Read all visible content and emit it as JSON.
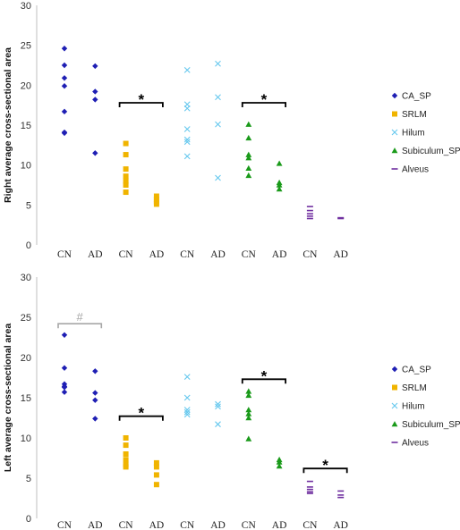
{
  "series_styles": [
    {
      "name": "CA_SP",
      "color": "#1f1fb4",
      "marker": "diamond"
    },
    {
      "name": "SRLM",
      "color": "#f0b400",
      "marker": "square"
    },
    {
      "name": "Hilum",
      "color": "#66c8ee",
      "marker": "x"
    },
    {
      "name": "Subiculum_SP",
      "color": "#1a9a1a",
      "marker": "triangle"
    },
    {
      "name": "Alveus",
      "color": "#7030a0",
      "marker": "dash"
    }
  ],
  "chart_data": [
    {
      "type": "scatter",
      "ylabel": "Right average cross-sectional area",
      "ylim": [
        0,
        30
      ],
      "yticks": [
        "0",
        "5",
        "10",
        "15",
        "20",
        "25",
        "30"
      ],
      "categories": [
        "CN",
        "AD",
        "CN",
        "AD",
        "CN",
        "AD",
        "CN",
        "AD",
        "CN",
        "AD"
      ],
      "legend": [
        "CA_SP",
        "SRLM",
        "Hilum",
        "Subiculum_SP",
        "Alveus"
      ],
      "legend_position": "right",
      "series": [
        {
          "name": "CA_SP",
          "points": [
            [
              1,
              24.6
            ],
            [
              1,
              22.5
            ],
            [
              1,
              20.9
            ],
            [
              1,
              19.9
            ],
            [
              1,
              16.7
            ],
            [
              1,
              14.1
            ],
            [
              1,
              14.0
            ],
            [
              2,
              22.4
            ],
            [
              2,
              19.2
            ],
            [
              2,
              18.2
            ],
            [
              2,
              11.5
            ]
          ]
        },
        {
          "name": "SRLM",
          "points": [
            [
              3,
              12.7
            ],
            [
              3,
              11.3
            ],
            [
              3,
              9.5
            ],
            [
              3,
              8.6
            ],
            [
              3,
              8.0
            ],
            [
              3,
              7.5
            ],
            [
              3,
              6.6
            ],
            [
              4,
              6.1
            ],
            [
              4,
              5.7
            ],
            [
              4,
              5.4
            ],
            [
              4,
              5.1
            ]
          ]
        },
        {
          "name": "Hilum",
          "points": [
            [
              5,
              21.9
            ],
            [
              5,
              17.6
            ],
            [
              5,
              17.1
            ],
            [
              5,
              14.5
            ],
            [
              5,
              13.2
            ],
            [
              5,
              12.9
            ],
            [
              5,
              11.1
            ],
            [
              6,
              22.7
            ],
            [
              6,
              18.5
            ],
            [
              6,
              15.1
            ],
            [
              6,
              8.4
            ]
          ]
        },
        {
          "name": "Subiculum_SP",
          "points": [
            [
              7,
              15.1
            ],
            [
              7,
              13.4
            ],
            [
              7,
              11.3
            ],
            [
              7,
              10.9
            ],
            [
              7,
              9.6
            ],
            [
              7,
              8.7
            ],
            [
              8,
              10.2
            ],
            [
              8,
              7.8
            ],
            [
              8,
              7.5
            ],
            [
              8,
              7.0
            ]
          ]
        },
        {
          "name": "Alveus",
          "points": [
            [
              9,
              4.8
            ],
            [
              9,
              4.3
            ],
            [
              9,
              3.9
            ],
            [
              9,
              3.6
            ],
            [
              9,
              3.3
            ],
            [
              10,
              3.4
            ],
            [
              10,
              3.3
            ]
          ]
        }
      ],
      "annotations": [
        {
          "text": "*",
          "x1": 3,
          "x2": 4,
          "y": 17.8,
          "color": "#000000"
        },
        {
          "text": "*",
          "x1": 7,
          "x2": 8,
          "y": 17.8,
          "color": "#000000"
        }
      ]
    },
    {
      "type": "scatter",
      "ylabel": "Left average cross-sectional area",
      "ylim": [
        0,
        30
      ],
      "yticks": [
        "0",
        "5",
        "10",
        "15",
        "20",
        "25",
        "30"
      ],
      "categories": [
        "CN",
        "AD",
        "CN",
        "AD",
        "CN",
        "AD",
        "CN",
        "AD",
        "CN",
        "AD"
      ],
      "legend": [
        "CA_SP",
        "SRLM",
        "Hilum",
        "Subiculum_SP",
        "Alveus"
      ],
      "legend_position": "right",
      "series": [
        {
          "name": "CA_SP",
          "points": [
            [
              1,
              22.8
            ],
            [
              1,
              18.7
            ],
            [
              1,
              16.7
            ],
            [
              1,
              16.4
            ],
            [
              1,
              16.3
            ],
            [
              1,
              15.7
            ],
            [
              2,
              18.3
            ],
            [
              2,
              15.6
            ],
            [
              2,
              14.7
            ],
            [
              2,
              12.4
            ]
          ]
        },
        {
          "name": "SRLM",
          "points": [
            [
              3,
              10.0
            ],
            [
              3,
              9.1
            ],
            [
              3,
              8.0
            ],
            [
              3,
              7.3
            ],
            [
              3,
              6.7
            ],
            [
              3,
              6.4
            ],
            [
              4,
              6.9
            ],
            [
              4,
              6.4
            ],
            [
              4,
              5.4
            ],
            [
              4,
              4.2
            ]
          ]
        },
        {
          "name": "Hilum",
          "points": [
            [
              5,
              17.6
            ],
            [
              5,
              15.0
            ],
            [
              5,
              13.5
            ],
            [
              5,
              13.2
            ],
            [
              5,
              12.9
            ],
            [
              6,
              14.2
            ],
            [
              6,
              13.9
            ],
            [
              6,
              11.7
            ]
          ]
        },
        {
          "name": "Subiculum_SP",
          "points": [
            [
              7,
              15.8
            ],
            [
              7,
              15.3
            ],
            [
              7,
              13.5
            ],
            [
              7,
              13.0
            ],
            [
              7,
              12.5
            ],
            [
              7,
              9.9
            ],
            [
              8,
              7.3
            ],
            [
              8,
              7.0
            ],
            [
              8,
              6.5
            ]
          ]
        },
        {
          "name": "Alveus",
          "points": [
            [
              9,
              4.6
            ],
            [
              9,
              3.9
            ],
            [
              9,
              3.6
            ],
            [
              9,
              3.3
            ],
            [
              9,
              3.1
            ],
            [
              10,
              3.4
            ],
            [
              10,
              2.9
            ],
            [
              10,
              2.6
            ]
          ]
        }
      ],
      "annotations": [
        {
          "text": "#",
          "x1": 1,
          "x2": 2,
          "y": 24.2,
          "color": "#a6a6a6"
        },
        {
          "text": "*",
          "x1": 3,
          "x2": 4,
          "y": 12.7,
          "color": "#000000"
        },
        {
          "text": "*",
          "x1": 7,
          "x2": 8,
          "y": 17.3,
          "color": "#000000"
        },
        {
          "text": "*",
          "x1": 9,
          "x2": 10,
          "y": 6.2,
          "color": "#000000"
        }
      ]
    }
  ]
}
